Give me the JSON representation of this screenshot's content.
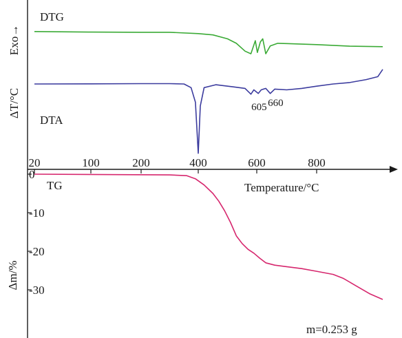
{
  "chart_data": {
    "type": "line",
    "x_ticks": [
      20,
      100,
      200,
      400,
      600,
      800
    ],
    "x_label": "Temperature/°C",
    "x_range": [
      20,
      1000
    ],
    "upper_y_label": "ΔT/°C",
    "upper_y_label_top": "Exo→",
    "lower_y_label": "Δm/%",
    "lower_y_ticks": [
      0,
      -10,
      -20,
      -30
    ],
    "lower_y_range": [
      0,
      -34
    ],
    "mass_annotation": "m=0.253 g",
    "series": [
      {
        "name": "DTG",
        "color": "#3aaa35",
        "points": [
          [
            20,
            0.9
          ],
          [
            100,
            0.88
          ],
          [
            200,
            0.87
          ],
          [
            300,
            0.87
          ],
          [
            400,
            0.82
          ],
          [
            450,
            0.77
          ],
          [
            500,
            0.62
          ],
          [
            530,
            0.45
          ],
          [
            560,
            0.15
          ],
          [
            580,
            0.05
          ],
          [
            595,
            0.55
          ],
          [
            602,
            0.1
          ],
          [
            612,
            0.5
          ],
          [
            620,
            0.62
          ],
          [
            630,
            0.05
          ],
          [
            645,
            0.35
          ],
          [
            670,
            0.45
          ],
          [
            700,
            0.44
          ],
          [
            800,
            0.4
          ],
          [
            900,
            0.34
          ],
          [
            1000,
            0.32
          ]
        ]
      },
      {
        "name": "DTA",
        "color": "#3b3b9e",
        "points": [
          [
            20,
            0.0
          ],
          [
            100,
            0.02
          ],
          [
            200,
            0.05
          ],
          [
            300,
            0.05
          ],
          [
            350,
            0.0
          ],
          [
            375,
            -0.5
          ],
          [
            390,
            -2.5
          ],
          [
            400,
            -9.5
          ],
          [
            407,
            -3.0
          ],
          [
            420,
            -0.5
          ],
          [
            460,
            -0.1
          ],
          [
            520,
            -0.4
          ],
          [
            560,
            -0.6
          ],
          [
            580,
            -1.4
          ],
          [
            590,
            -0.8
          ],
          [
            605,
            -1.3
          ],
          [
            615,
            -0.8
          ],
          [
            630,
            -0.6
          ],
          [
            645,
            -1.3
          ],
          [
            660,
            -0.7
          ],
          [
            700,
            -0.8
          ],
          [
            750,
            -0.6
          ],
          [
            800,
            -0.3
          ],
          [
            850,
            0.0
          ],
          [
            900,
            0.2
          ],
          [
            950,
            0.6
          ],
          [
            985,
            1.0
          ],
          [
            1000,
            2.0
          ]
        ]
      },
      {
        "name": "TG",
        "color": "#d6266d",
        "points": [
          [
            20,
            0.0
          ],
          [
            300,
            -0.2
          ],
          [
            360,
            -0.4
          ],
          [
            390,
            -1.2
          ],
          [
            420,
            -2.8
          ],
          [
            450,
            -5.0
          ],
          [
            470,
            -7.0
          ],
          [
            490,
            -9.5
          ],
          [
            510,
            -12.5
          ],
          [
            530,
            -16.0
          ],
          [
            550,
            -18.0
          ],
          [
            570,
            -19.5
          ],
          [
            590,
            -20.5
          ],
          [
            610,
            -21.8
          ],
          [
            630,
            -23.0
          ],
          [
            660,
            -23.6
          ],
          [
            700,
            -24.0
          ],
          [
            750,
            -24.5
          ],
          [
            800,
            -25.2
          ],
          [
            850,
            -26.0
          ],
          [
            880,
            -27.0
          ],
          [
            920,
            -29.0
          ],
          [
            960,
            -31.0
          ],
          [
            1000,
            -32.5
          ]
        ]
      }
    ],
    "peak_labels": [
      "605",
      "660"
    ],
    "peak_positions": [
      605,
      660
    ]
  }
}
